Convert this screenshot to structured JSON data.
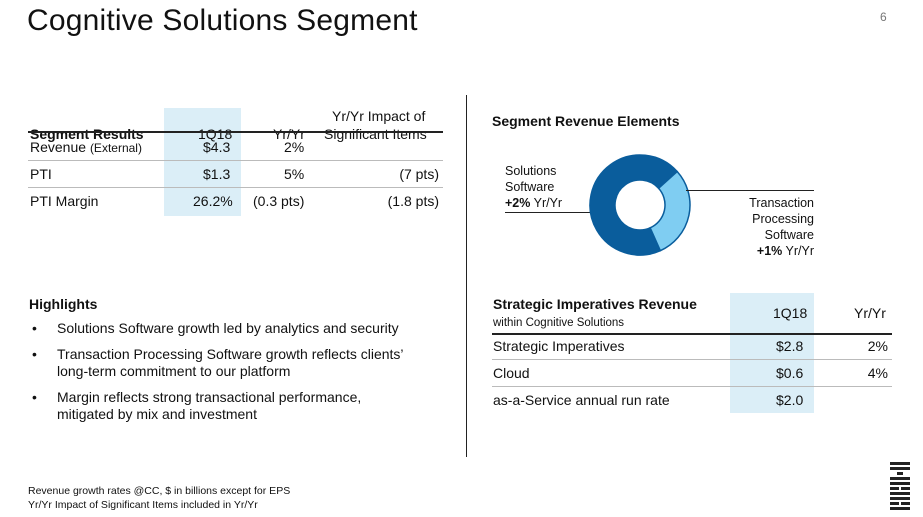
{
  "page": {
    "title": "Cognitive Solutions Segment",
    "page_number": "6"
  },
  "segment_results": {
    "headers": [
      "Segment Results",
      "1Q18",
      "Yr/Yr",
      "Yr/Yr Impact of",
      "Significant Items"
    ],
    "rows": [
      {
        "label": "Revenue",
        "label_note": "(External)",
        "q": "$4.3",
        "yy": "2%",
        "impact": ""
      },
      {
        "label": "PTI",
        "label_note": "",
        "q": "$1.3",
        "yy": "5%",
        "impact": "(7 pts)"
      },
      {
        "label": "PTI Margin",
        "label_note": "",
        "q": "26.2%",
        "yy": "(0.3 pts)",
        "impact": "(1.8 pts)"
      }
    ]
  },
  "revenue_elements": {
    "title": "Segment Revenue Elements",
    "left_label": {
      "line1": "Solutions",
      "line2": "Software",
      "growth": "+2%",
      "suffix": "Yr/Yr"
    },
    "right_label": {
      "line1": "Transaction",
      "line2": "Processing",
      "line3": "Software",
      "growth": "+1%",
      "suffix": "Yr/Yr"
    },
    "colors": {
      "dark": "#0a5d9c",
      "light": "#7fcdf2",
      "stroke": "#0a5d9c"
    },
    "donut_share_light": 0.3
  },
  "highlights": {
    "title": "Highlights",
    "bullet": "•",
    "items": [
      "Solutions Software growth led by analytics and security",
      "Transaction Processing Software growth reflects clients’ long-term commitment to our platform",
      "Margin reflects strong transactional performance, mitigated by mix and investment"
    ]
  },
  "strategic_imperatives": {
    "title": "Strategic Imperatives Revenue",
    "subtitle": "within Cognitive Solutions",
    "col_q": "1Q18",
    "col_yy": "Yr/Yr",
    "rows": [
      {
        "label": "Strategic Imperatives",
        "q": "$2.8",
        "yy": "2%"
      },
      {
        "label": "Cloud",
        "q": "$0.6",
        "yy": "4%"
      },
      {
        "label": "as-a-Service annual run rate",
        "q": "$2.0",
        "yy": ""
      }
    ]
  },
  "footnote": {
    "line1": "Revenue growth rates @CC, $ in billions except for EPS",
    "line2": "Yr/Yr Impact of Significant Items included in Yr/Yr"
  },
  "logo": {
    "name": "IBM logo",
    "text": "IBM"
  }
}
